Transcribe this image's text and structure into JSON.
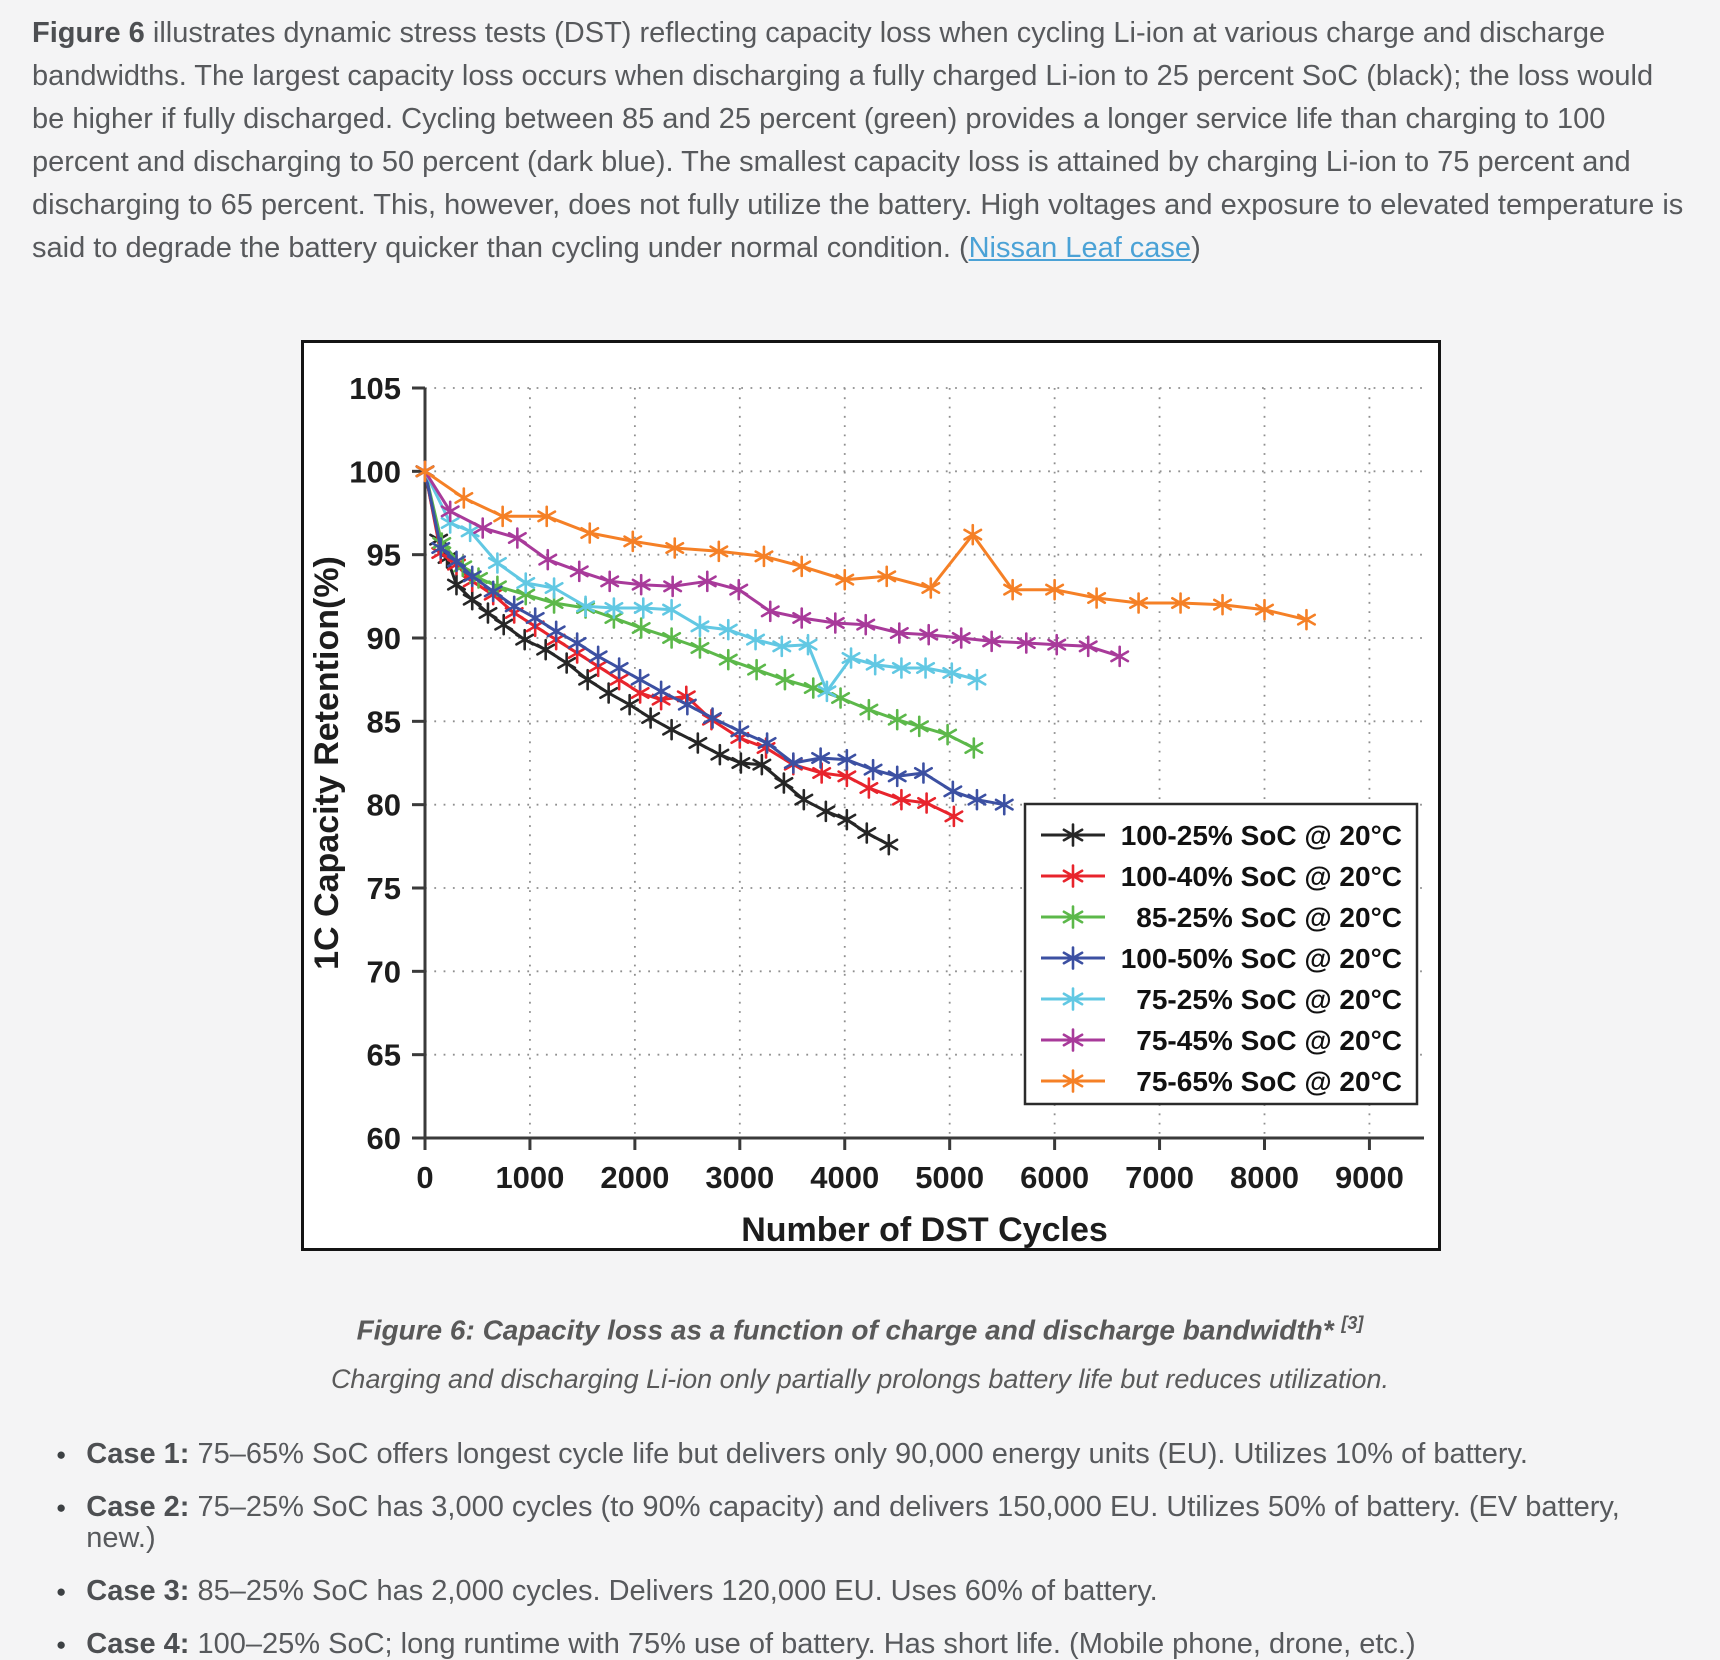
{
  "page": {
    "background": "#f4f4f5",
    "text_color": "#57595c",
    "link_color": "#4ba2d6"
  },
  "intro": {
    "lead_bold": "Figure 6",
    "text_before_link": " illustrates dynamic stress tests (DST) reflecting capacity loss when cycling Li-ion at various charge and discharge bandwidths. The largest capacity loss occurs when discharging a fully charged Li-ion to 25 percent SoC (black); the loss would be higher if fully discharged. Cycling between 85 and 25 percent (green) provides a longer service life than charging to 100 percent and discharging to 50 percent (dark blue). The smallest capacity loss is attained by charging Li-ion to 75 percent and discharging to 65 percent. This, however, does not fully utilize the battery. High voltages and exposure to elevated temperature is said to degrade the battery quicker than cycling under normal condition. (",
    "link_text": "Nissan Leaf case",
    "text_after_link": ")"
  },
  "figure": {
    "caption_main": "Figure 6: Capacity loss as a function of charge and discharge bandwidth*",
    "caption_ref": "[3]",
    "caption_sub": "Charging and discharging Li-ion only partially prolongs battery life but reduces utilization."
  },
  "cases": [
    {
      "label": "Case 1:",
      "text": " 75–65% SoC offers longest cycle life but delivers only 90,000 energy units (EU). Utilizes 10% of battery."
    },
    {
      "label": "Case 2:",
      "text": " 75–25% SoC has 3,000 cycles (to 90% capacity) and delivers 150,000 EU. Utilizes 50% of battery. (EV battery, new.)"
    },
    {
      "label": "Case 3:",
      "text": " 85–25% SoC has 2,000 cycles. Delivers 120,000 EU. Uses 60% of battery."
    },
    {
      "label": "Case 4:",
      "text": " 100–25% SoC; long runtime with 75% use of battery. Has short life. (Mobile phone, drone, etc.)"
    }
  ],
  "chart_data": {
    "type": "line",
    "title": "",
    "xlabel": "Number of DST Cycles",
    "ylabel": "1C Capacity Retention(%)",
    "xlim": [
      0,
      9000
    ],
    "ylim": [
      60,
      105
    ],
    "x_ticks": [
      0,
      1000,
      2000,
      3000,
      4000,
      5000,
      6000,
      7000,
      8000,
      9000
    ],
    "y_ticks": [
      60,
      65,
      70,
      75,
      80,
      85,
      90,
      95,
      100,
      105
    ],
    "grid": "dotted",
    "legend_position": "lower right",
    "marker": "asterisk",
    "axis_color": "#3a3a3a",
    "grid_color": "#8f8f8f",
    "series": [
      {
        "name": "100-25% SoC @ 20°C",
        "color": "#262626",
        "points": [
          [
            0,
            100
          ],
          [
            130,
            95.9
          ],
          [
            210,
            94.8
          ],
          [
            300,
            93.2
          ],
          [
            450,
            92.3
          ],
          [
            600,
            91.5
          ],
          [
            750,
            90.8
          ],
          [
            950,
            89.9
          ],
          [
            1150,
            89.3
          ],
          [
            1350,
            88.5
          ],
          [
            1550,
            87.5
          ],
          [
            1750,
            86.7
          ],
          [
            1950,
            86.0
          ],
          [
            2150,
            85.2
          ],
          [
            2350,
            84.5
          ],
          [
            2600,
            83.7
          ],
          [
            2810,
            83.0
          ],
          [
            3010,
            82.5
          ],
          [
            3210,
            82.4
          ],
          [
            3420,
            81.3
          ],
          [
            3610,
            80.3
          ],
          [
            3820,
            79.6
          ],
          [
            4020,
            79.1
          ],
          [
            4210,
            78.3
          ],
          [
            4420,
            77.6
          ]
        ]
      },
      {
        "name": "100-40% SoC @ 20°C",
        "color": "#e8242c",
        "points": [
          [
            0,
            100
          ],
          [
            150,
            95.1
          ],
          [
            300,
            94.4
          ],
          [
            450,
            93.4
          ],
          [
            650,
            92.6
          ],
          [
            850,
            91.5
          ],
          [
            1050,
            90.7
          ],
          [
            1250,
            89.9
          ],
          [
            1450,
            89.1
          ],
          [
            1650,
            88.3
          ],
          [
            1850,
            87.5
          ],
          [
            2050,
            86.7
          ],
          [
            2250,
            86.3
          ],
          [
            2490,
            86.5
          ],
          [
            2730,
            85.1
          ],
          [
            3000,
            84.0
          ],
          [
            3250,
            83.4
          ],
          [
            3510,
            82.4
          ],
          [
            3780,
            81.9
          ],
          [
            4020,
            81.7
          ],
          [
            4230,
            81.0
          ],
          [
            4540,
            80.3
          ],
          [
            4780,
            80.1
          ],
          [
            5040,
            79.3
          ]
        ]
      },
      {
        "name": "85-25% SoC @ 20°C",
        "color": "#5cb84a",
        "points": [
          [
            0,
            100
          ],
          [
            160,
            95.7
          ],
          [
            360,
            94.3
          ],
          [
            510,
            93.6
          ],
          [
            690,
            93.1
          ],
          [
            960,
            92.6
          ],
          [
            1230,
            92.1
          ],
          [
            1530,
            91.8
          ],
          [
            1800,
            91.2
          ],
          [
            2060,
            90.6
          ],
          [
            2350,
            90.0
          ],
          [
            2620,
            89.4
          ],
          [
            2890,
            88.7
          ],
          [
            3160,
            88.1
          ],
          [
            3430,
            87.5
          ],
          [
            3700,
            87.0
          ],
          [
            3960,
            86.4
          ],
          [
            4230,
            85.7
          ],
          [
            4500,
            85.1
          ],
          [
            4710,
            84.7
          ],
          [
            4980,
            84.2
          ],
          [
            5230,
            83.4
          ]
        ]
      },
      {
        "name": "100-50% SoC @ 20°C",
        "color": "#3c50a2",
        "points": [
          [
            0,
            100
          ],
          [
            150,
            95.4
          ],
          [
            300,
            94.6
          ],
          [
            450,
            93.7
          ],
          [
            650,
            92.8
          ],
          [
            850,
            91.9
          ],
          [
            1050,
            91.2
          ],
          [
            1250,
            90.4
          ],
          [
            1450,
            89.7
          ],
          [
            1650,
            88.9
          ],
          [
            1850,
            88.2
          ],
          [
            2050,
            87.5
          ],
          [
            2250,
            86.8
          ],
          [
            2500,
            86.0
          ],
          [
            2740,
            85.2
          ],
          [
            3000,
            84.4
          ],
          [
            3260,
            83.7
          ],
          [
            3510,
            82.5
          ],
          [
            3770,
            82.8
          ],
          [
            4020,
            82.7
          ],
          [
            4270,
            82.1
          ],
          [
            4500,
            81.7
          ],
          [
            4750,
            81.9
          ],
          [
            5030,
            80.8
          ],
          [
            5260,
            80.3
          ],
          [
            5520,
            80.0
          ]
        ]
      },
      {
        "name": "75-25% SoC @ 20°C",
        "color": "#62c8e3",
        "points": [
          [
            0,
            100
          ],
          [
            240,
            96.9
          ],
          [
            430,
            96.4
          ],
          [
            690,
            94.5
          ],
          [
            960,
            93.3
          ],
          [
            1230,
            93.0
          ],
          [
            1530,
            91.9
          ],
          [
            1800,
            91.8
          ],
          [
            2080,
            91.8
          ],
          [
            2350,
            91.7
          ],
          [
            2620,
            90.7
          ],
          [
            2890,
            90.5
          ],
          [
            3150,
            89.9
          ],
          [
            3400,
            89.5
          ],
          [
            3650,
            89.6
          ],
          [
            3830,
            86.8
          ],
          [
            4060,
            88.8
          ],
          [
            4290,
            88.4
          ],
          [
            4540,
            88.2
          ],
          [
            4770,
            88.2
          ],
          [
            5020,
            87.9
          ],
          [
            5260,
            87.5
          ]
        ]
      },
      {
        "name": "75-45% SoC @ 20°C",
        "color": "#a83a9a",
        "points": [
          [
            0,
            100
          ],
          [
            240,
            97.6
          ],
          [
            550,
            96.6
          ],
          [
            880,
            96.0
          ],
          [
            1170,
            94.7
          ],
          [
            1470,
            94.0
          ],
          [
            1760,
            93.4
          ],
          [
            2060,
            93.2
          ],
          [
            2360,
            93.1
          ],
          [
            2690,
            93.4
          ],
          [
            2990,
            92.9
          ],
          [
            3290,
            91.6
          ],
          [
            3590,
            91.2
          ],
          [
            3910,
            90.9
          ],
          [
            4200,
            90.8
          ],
          [
            4520,
            90.3
          ],
          [
            4800,
            90.2
          ],
          [
            5110,
            90.0
          ],
          [
            5400,
            89.8
          ],
          [
            5730,
            89.7
          ],
          [
            6020,
            89.6
          ],
          [
            6320,
            89.5
          ],
          [
            6620,
            88.9
          ]
        ]
      },
      {
        "name": "75-65% SoC @ 20°C",
        "color": "#f58026",
        "points": [
          [
            0,
            100
          ],
          [
            370,
            98.4
          ],
          [
            740,
            97.3
          ],
          [
            1160,
            97.3
          ],
          [
            1570,
            96.3
          ],
          [
            1980,
            95.8
          ],
          [
            2380,
            95.4
          ],
          [
            2800,
            95.2
          ],
          [
            3230,
            94.9
          ],
          [
            3590,
            94.3
          ],
          [
            4000,
            93.5
          ],
          [
            4400,
            93.7
          ],
          [
            4820,
            93.0
          ],
          [
            5220,
            96.2
          ],
          [
            5600,
            92.9
          ],
          [
            6000,
            92.9
          ],
          [
            6400,
            92.4
          ],
          [
            6800,
            92.1
          ],
          [
            7200,
            92.1
          ],
          [
            7600,
            92.0
          ],
          [
            8000,
            91.7
          ],
          [
            8400,
            91.1
          ]
        ]
      }
    ]
  }
}
